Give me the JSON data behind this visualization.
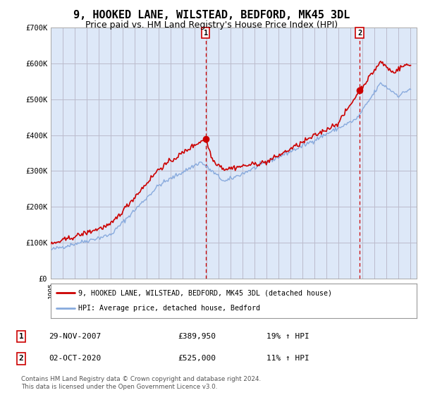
{
  "title": "9, HOOKED LANE, WILSTEAD, BEDFORD, MK45 3DL",
  "subtitle": "Price paid vs. HM Land Registry's House Price Index (HPI)",
  "ylim": [
    0,
    700000
  ],
  "yticks": [
    0,
    100000,
    200000,
    300000,
    400000,
    500000,
    600000,
    700000
  ],
  "ytick_labels": [
    "£0",
    "£100K",
    "£200K",
    "£300K",
    "£400K",
    "£500K",
    "£600K",
    "£700K"
  ],
  "xlim": [
    1995.0,
    2025.5
  ],
  "sale1_date": 2007.91,
  "sale1_price": 389950,
  "sale1_label": "1",
  "sale2_date": 2020.75,
  "sale2_price": 525000,
  "sale2_label": "2",
  "legend_line1": "9, HOOKED LANE, WILSTEAD, BEDFORD, MK45 3DL (detached house)",
  "legend_line2": "HPI: Average price, detached house, Bedford",
  "table_row1": [
    "1",
    "29-NOV-2007",
    "£389,950",
    "19% ↑ HPI"
  ],
  "table_row2": [
    "2",
    "02-OCT-2020",
    "£525,000",
    "11% ↑ HPI"
  ],
  "footer": "Contains HM Land Registry data © Crown copyright and database right 2024.\nThis data is licensed under the Open Government Licence v3.0.",
  "line_color_red": "#cc0000",
  "line_color_blue": "#88aadd",
  "background_color": "#ffffff",
  "plot_bg_color": "#dde8f8",
  "grid_color": "#bbbbcc",
  "title_fontsize": 11,
  "subtitle_fontsize": 9
}
